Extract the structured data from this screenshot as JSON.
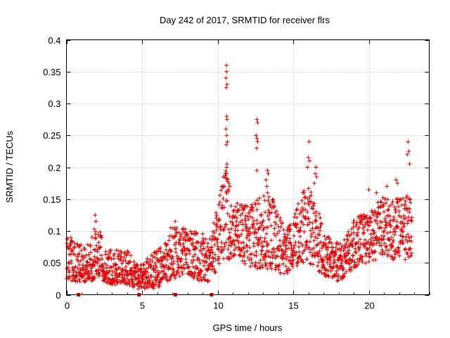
{
  "chart_data": {
    "type": "scatter",
    "title": "Day 242 of 2017, SRMTID for receiver flrs",
    "xlabel": "GPS time / hours",
    "ylabel": "SRMTID / TECUs",
    "xlim": [
      0,
      24
    ],
    "ylim": [
      0,
      0.4
    ],
    "x_ticks": [
      0,
      5,
      10,
      15,
      20
    ],
    "x_tick_labels": [
      "0",
      "5",
      "10",
      "15",
      "20"
    ],
    "y_ticks": [
      0,
      0.05,
      0.1,
      0.15,
      0.2,
      0.25,
      0.3,
      0.35,
      0.4
    ],
    "y_tick_labels": [
      "0",
      "0.05",
      "0.1",
      "0.15",
      "0.2",
      "0.25",
      "0.3",
      "0.35",
      "0.4"
    ],
    "grid": true,
    "marker": "+",
    "series_color": "#e00000",
    "baseline_markers_x": [
      0.8,
      4.8,
      7.2,
      9.6
    ],
    "envelope": [
      [
        0.0,
        0.025,
        0.045,
        0.095
      ],
      [
        0.3,
        0.02,
        0.05,
        0.09
      ],
      [
        0.8,
        0.02,
        0.04,
        0.08
      ],
      [
        1.5,
        0.02,
        0.04,
        0.08
      ],
      [
        2.0,
        0.025,
        0.06,
        0.125
      ],
      [
        2.5,
        0.02,
        0.04,
        0.075
      ],
      [
        3.0,
        0.015,
        0.035,
        0.07
      ],
      [
        4.0,
        0.015,
        0.035,
        0.07
      ],
      [
        4.8,
        0.005,
        0.025,
        0.045
      ],
      [
        5.5,
        0.01,
        0.025,
        0.06
      ],
      [
        6.0,
        0.01,
        0.03,
        0.07
      ],
      [
        6.5,
        0.02,
        0.045,
        0.08
      ],
      [
        7.2,
        0.025,
        0.06,
        0.115
      ],
      [
        8.0,
        0.03,
        0.065,
        0.1
      ],
      [
        9.0,
        0.02,
        0.06,
        0.1
      ],
      [
        9.5,
        0.02,
        0.06,
        0.09
      ],
      [
        10.0,
        0.04,
        0.09,
        0.14
      ],
      [
        10.5,
        0.05,
        0.11,
        0.2
      ],
      [
        11.0,
        0.06,
        0.1,
        0.15
      ],
      [
        12.0,
        0.04,
        0.09,
        0.14
      ],
      [
        12.5,
        0.04,
        0.09,
        0.15
      ],
      [
        13.5,
        0.04,
        0.08,
        0.16
      ],
      [
        14.5,
        0.03,
        0.065,
        0.1
      ],
      [
        15.0,
        0.04,
        0.08,
        0.12
      ],
      [
        15.5,
        0.05,
        0.1,
        0.16
      ],
      [
        16.0,
        0.05,
        0.1,
        0.17
      ],
      [
        16.5,
        0.04,
        0.08,
        0.15
      ],
      [
        17.0,
        0.03,
        0.06,
        0.1
      ],
      [
        18.0,
        0.02,
        0.05,
        0.08
      ],
      [
        18.5,
        0.03,
        0.06,
        0.09
      ],
      [
        19.0,
        0.04,
        0.08,
        0.12
      ],
      [
        20.0,
        0.05,
        0.09,
        0.13
      ],
      [
        21.0,
        0.06,
        0.1,
        0.16
      ],
      [
        22.0,
        0.05,
        0.1,
        0.15
      ],
      [
        22.8,
        0.06,
        0.11,
        0.16
      ]
    ],
    "spikes": [
      [
        10.58,
        0.36
      ],
      [
        10.6,
        0.35
      ],
      [
        10.55,
        0.34
      ],
      [
        10.62,
        0.33
      ],
      [
        10.57,
        0.325
      ],
      [
        10.6,
        0.28
      ],
      [
        10.63,
        0.275
      ],
      [
        10.55,
        0.26
      ],
      [
        10.6,
        0.25
      ],
      [
        10.65,
        0.24
      ],
      [
        10.58,
        0.235
      ],
      [
        10.62,
        0.205
      ],
      [
        10.6,
        0.2
      ],
      [
        10.58,
        0.19
      ],
      [
        10.75,
        0.175
      ],
      [
        10.8,
        0.17
      ],
      [
        10.7,
        0.165
      ],
      [
        12.6,
        0.275
      ],
      [
        12.65,
        0.27
      ],
      [
        12.55,
        0.25
      ],
      [
        12.6,
        0.245
      ],
      [
        12.65,
        0.24
      ],
      [
        12.58,
        0.23
      ],
      [
        12.6,
        0.195
      ],
      [
        13.3,
        0.195
      ],
      [
        13.35,
        0.19
      ],
      [
        13.2,
        0.18
      ],
      [
        13.25,
        0.17
      ],
      [
        13.3,
        0.16
      ],
      [
        16.05,
        0.24
      ],
      [
        16.0,
        0.215
      ],
      [
        16.08,
        0.21
      ],
      [
        15.95,
        0.2
      ],
      [
        16.5,
        0.2
      ],
      [
        16.45,
        0.19
      ],
      [
        16.55,
        0.185
      ],
      [
        16.4,
        0.175
      ],
      [
        22.6,
        0.24
      ],
      [
        22.65,
        0.225
      ],
      [
        22.55,
        0.22
      ],
      [
        22.7,
        0.205
      ],
      [
        1.9,
        0.125
      ],
      [
        1.95,
        0.115
      ],
      [
        7.2,
        0.115
      ],
      [
        6.9,
        0.105
      ],
      [
        21.8,
        0.18
      ],
      [
        21.9,
        0.175
      ],
      [
        21.2,
        0.17
      ],
      [
        20.0,
        0.165
      ],
      [
        20.5,
        0.16
      ]
    ]
  }
}
